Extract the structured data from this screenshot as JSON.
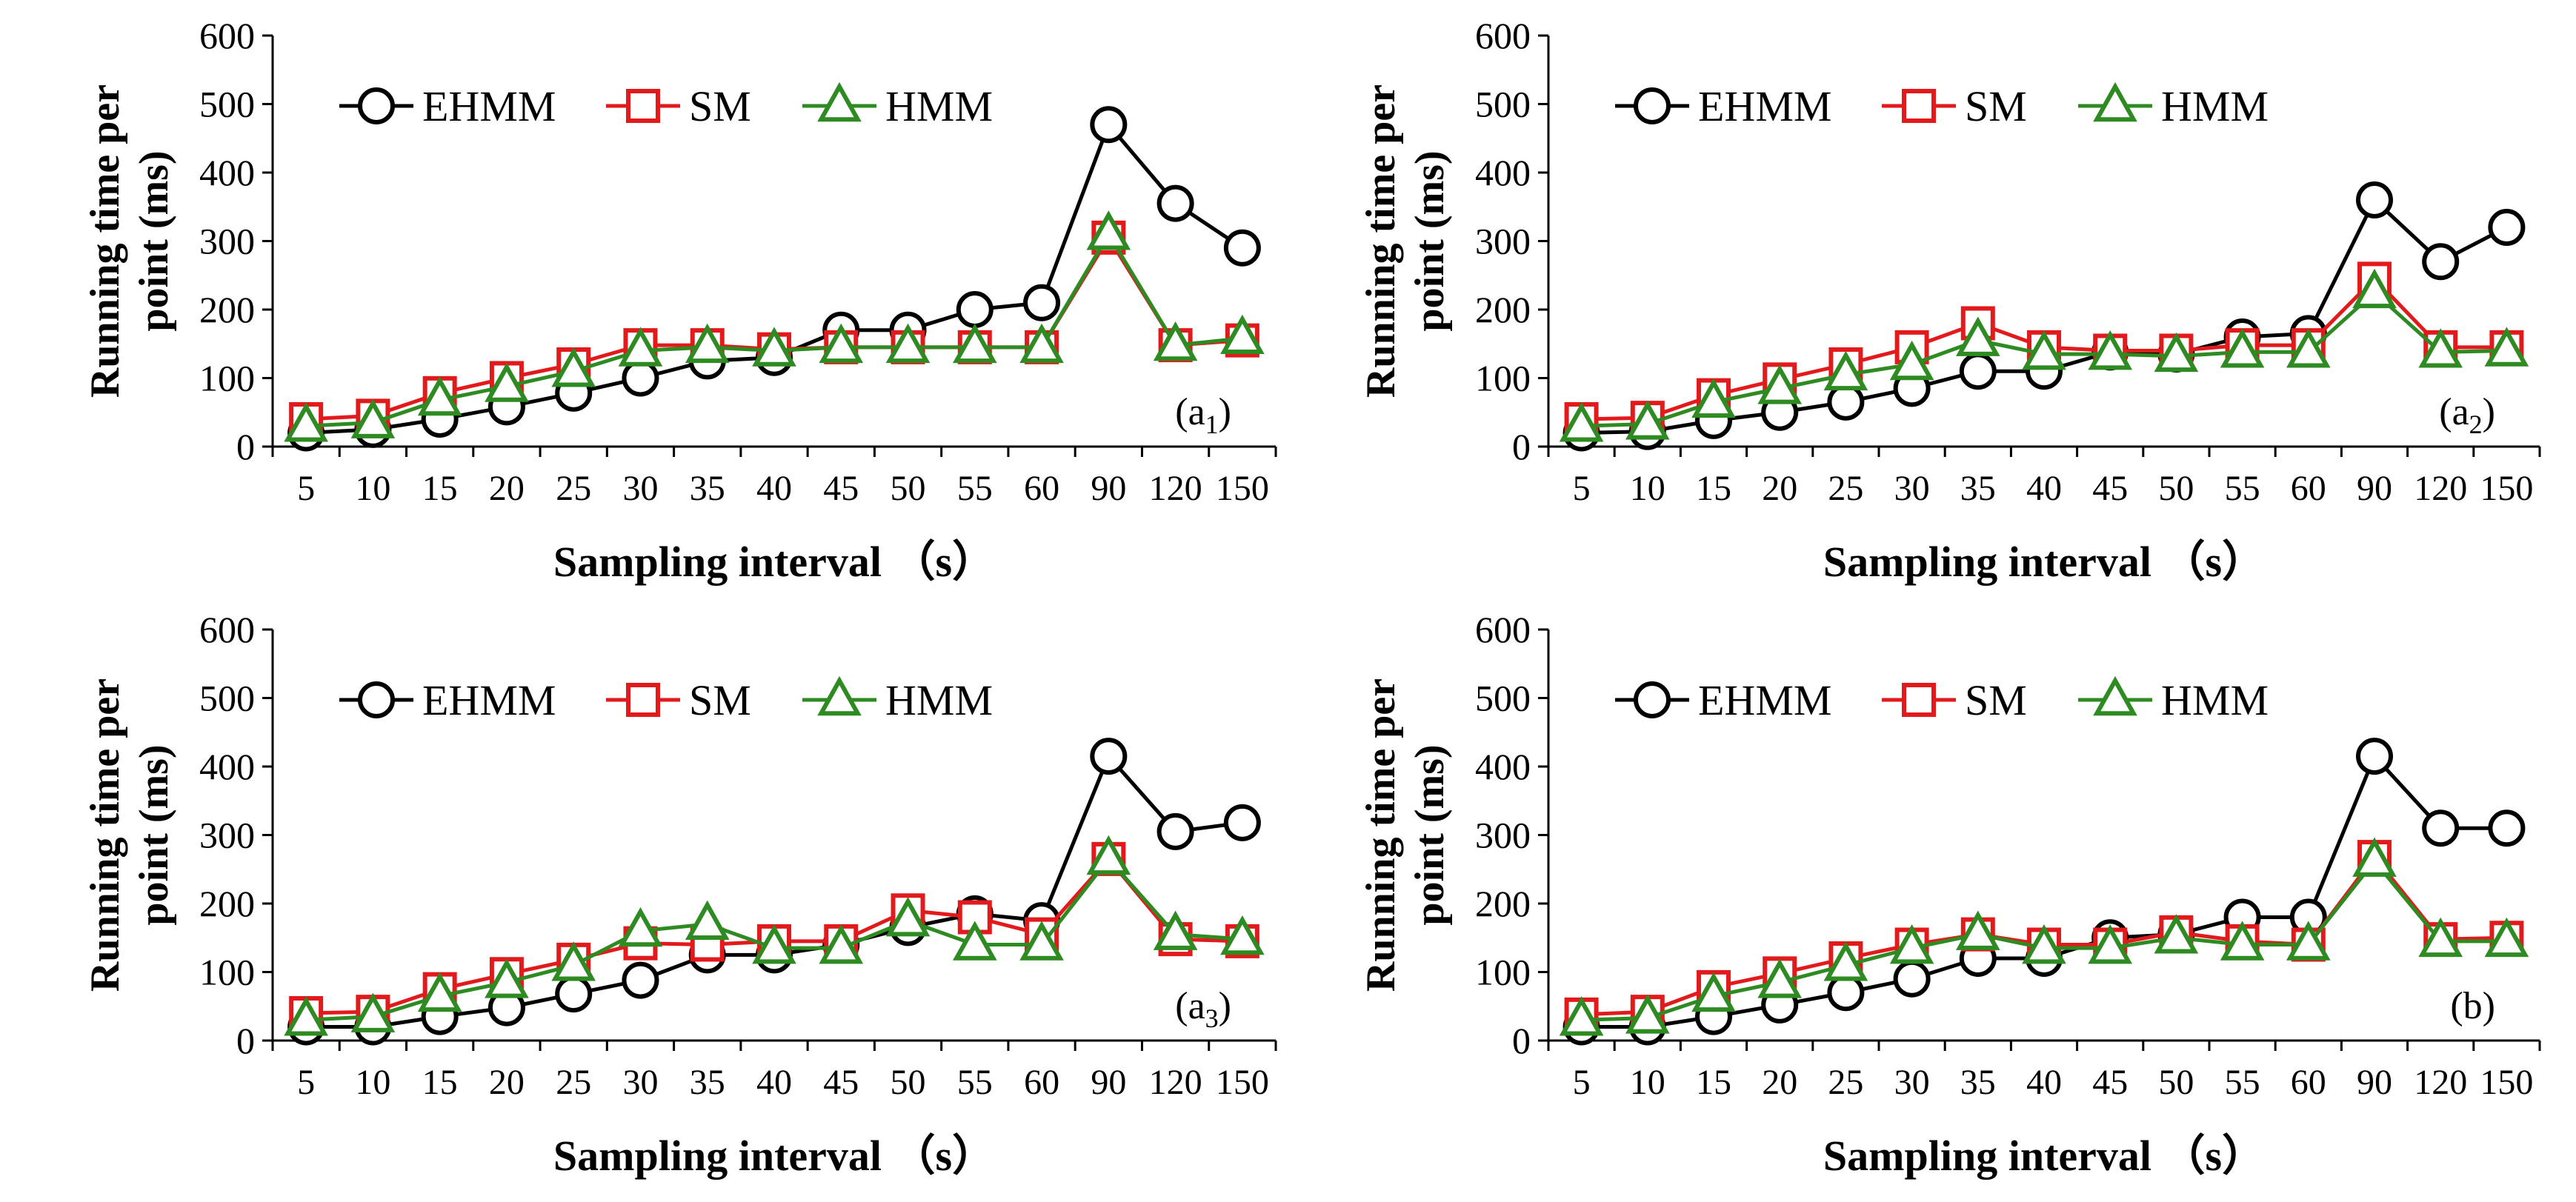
{
  "figure": {
    "description_label": "Running time per point vs sampling interval"
  },
  "chart_data": [
    {
      "panel": "a1",
      "type": "line",
      "categories": [
        "5",
        "10",
        "15",
        "20",
        "25",
        "30",
        "35",
        "40",
        "45",
        "50",
        "55",
        "60",
        "90",
        "120",
        "150"
      ],
      "ylabel_lines": [
        "Running  time  per",
        "point  (ms)"
      ],
      "xlabel": "Sampling interval   （s）",
      "ylim": [
        0,
        600
      ],
      "yticks": [
        "0",
        "100",
        "200",
        "300",
        "400",
        "500",
        "600"
      ],
      "panel_label": {
        "text": "(a",
        "sub": "1",
        "close": ")"
      },
      "legend_position": "top-left",
      "series": [
        {
          "name": "EHMM",
          "marker": "circle",
          "color": "#000000",
          "values": [
            20,
            25,
            40,
            58,
            78,
            100,
            125,
            130,
            170,
            170,
            200,
            210,
            470,
            355,
            290
          ]
        },
        {
          "name": "SM",
          "marker": "square",
          "color": "#e31a1c",
          "values": [
            40,
            45,
            78,
            100,
            120,
            148,
            148,
            142,
            145,
            145,
            145,
            145,
            305,
            148,
            155
          ]
        },
        {
          "name": "HMM",
          "marker": "triangle",
          "color": "#2e8b22",
          "values": [
            30,
            35,
            68,
            88,
            110,
            140,
            145,
            140,
            145,
            145,
            145,
            145,
            310,
            148,
            158
          ]
        }
      ]
    },
    {
      "panel": "a2",
      "type": "line",
      "categories": [
        "5",
        "10",
        "15",
        "20",
        "25",
        "30",
        "35",
        "40",
        "45",
        "50",
        "55",
        "60",
        "90",
        "120",
        "150"
      ],
      "ylabel_lines": [
        "Running  time  per",
        "point  (ms)"
      ],
      "xlabel": "Sampling interval   （s）",
      "ylim": [
        0,
        600
      ],
      "yticks": [
        "0",
        "100",
        "200",
        "300",
        "400",
        "500",
        "600"
      ],
      "panel_label": {
        "text": "(a",
        "sub": "2",
        "close": ")"
      },
      "legend_position": "top-left",
      "series": [
        {
          "name": "EHMM",
          "marker": "circle",
          "color": "#000000",
          "values": [
            20,
            22,
            38,
            50,
            65,
            85,
            110,
            110,
            138,
            135,
            160,
            165,
            360,
            270,
            320
          ]
        },
        {
          "name": "SM",
          "marker": "square",
          "color": "#e31a1c",
          "values": [
            40,
            42,
            75,
            98,
            120,
            145,
            180,
            145,
            140,
            140,
            148,
            148,
            245,
            145,
            145
          ]
        },
        {
          "name": "HMM",
          "marker": "triangle",
          "color": "#2e8b22",
          "values": [
            30,
            33,
            65,
            85,
            105,
            120,
            155,
            135,
            135,
            132,
            138,
            138,
            225,
            138,
            140
          ]
        }
      ]
    },
    {
      "panel": "a3",
      "type": "line",
      "categories": [
        "5",
        "10",
        "15",
        "20",
        "25",
        "30",
        "35",
        "40",
        "45",
        "50",
        "55",
        "60",
        "90",
        "120",
        "150"
      ],
      "ylabel_lines": [
        "Running  time  per",
        "point  (ms)"
      ],
      "xlabel": "Sampling interval   （s）",
      "ylim": [
        0,
        600
      ],
      "yticks": [
        "0",
        "100",
        "200",
        "300",
        "400",
        "500",
        "600"
      ],
      "panel_label": {
        "text": "(a",
        "sub": "3",
        "close": ")"
      },
      "legend_position": "top-left",
      "series": [
        {
          "name": "EHMM",
          "marker": "circle",
          "color": "#000000",
          "values": [
            20,
            20,
            35,
            48,
            68,
            88,
            125,
            125,
            140,
            165,
            185,
            175,
            415,
            305,
            318
          ]
        },
        {
          "name": "SM",
          "marker": "square",
          "color": "#e31a1c",
          "values": [
            40,
            42,
            75,
            97,
            118,
            142,
            140,
            145,
            145,
            190,
            180,
            155,
            265,
            148,
            145
          ]
        },
        {
          "name": "HMM",
          "marker": "triangle",
          "color": "#2e8b22",
          "values": [
            30,
            35,
            65,
            85,
            110,
            160,
            170,
            135,
            135,
            175,
            140,
            140,
            265,
            155,
            148
          ]
        }
      ]
    },
    {
      "panel": "b",
      "type": "line",
      "categories": [
        "5",
        "10",
        "15",
        "20",
        "25",
        "30",
        "35",
        "40",
        "45",
        "50",
        "55",
        "60",
        "90",
        "120",
        "150"
      ],
      "ylabel_lines": [
        "Running  time  per",
        "point  (ms)"
      ],
      "xlabel": "Sampling interval   （s）",
      "ylim": [
        0,
        600
      ],
      "yticks": [
        "0",
        "100",
        "200",
        "300",
        "400",
        "500",
        "600"
      ],
      "panel_label": {
        "text": "(b",
        "sub": "",
        "close": ")"
      },
      "legend_position": "top-left",
      "series": [
        {
          "name": "EHMM",
          "marker": "circle",
          "color": "#000000",
          "values": [
            20,
            20,
            35,
            52,
            70,
            90,
            120,
            120,
            150,
            155,
            180,
            180,
            415,
            310,
            310
          ]
        },
        {
          "name": "SM",
          "marker": "square",
          "color": "#e31a1c",
          "values": [
            38,
            42,
            78,
            98,
            120,
            140,
            155,
            140,
            140,
            158,
            145,
            140,
            268,
            148,
            150
          ]
        },
        {
          "name": "HMM",
          "marker": "triangle",
          "color": "#2e8b22",
          "values": [
            30,
            33,
            65,
            85,
            110,
            135,
            155,
            135,
            135,
            150,
            140,
            140,
            262,
            145,
            145
          ]
        }
      ]
    }
  ]
}
